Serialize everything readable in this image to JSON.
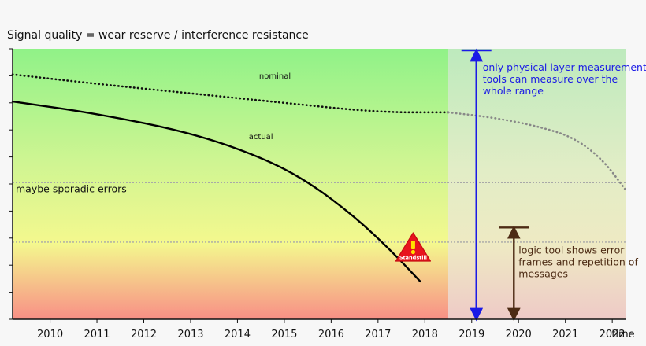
{
  "chart_data": {
    "type": "line",
    "title": "Signal quality = wear reserve / interference resistance",
    "xlabel": "time",
    "ylabel": "",
    "x_ticks": [
      "2010",
      "2011",
      "2012",
      "2013",
      "2014",
      "2015",
      "2016",
      "2017",
      "2018",
      "2019",
      "2020",
      "2021",
      "2022"
    ],
    "xlim": [
      2009.2,
      2022.3
    ],
    "ylim": [
      0,
      1
    ],
    "grid": false,
    "series": [
      {
        "name": "nominal",
        "style": "dotted",
        "color": "#111111",
        "x": [
          2009.2,
          2011,
          2013,
          2015,
          2017,
          2018.5
        ],
        "y": [
          0.905,
          0.87,
          0.835,
          0.8,
          0.765,
          0.765
        ]
      },
      {
        "name": "nominal-projection",
        "style": "dotted",
        "color": "#888888",
        "x": [
          2018.5,
          2019.5,
          2020.5,
          2021.2,
          2021.8,
          2022.3
        ],
        "y": [
          0.765,
          0.745,
          0.71,
          0.67,
          0.59,
          0.475
        ]
      },
      {
        "name": "actual",
        "style": "solid",
        "color": "#000000",
        "x": [
          2009.2,
          2011,
          2013,
          2014.5,
          2015.5,
          2016.5,
          2017.3,
          2017.9
        ],
        "y": [
          0.805,
          0.76,
          0.69,
          0.6,
          0.51,
          0.38,
          0.25,
          0.14
        ]
      }
    ],
    "threshold_lines": [
      {
        "label": "maybe sporadic errors",
        "y": 0.505
      },
      {
        "label": "",
        "y": 0.285
      }
    ],
    "series_labels": [
      {
        "text": "nominal",
        "x": 2014.8,
        "y": 0.89
      },
      {
        "text": "actual",
        "x": 2014.5,
        "y": 0.665
      }
    ],
    "regions": {
      "split_x": 2018.5
    },
    "annotations": [
      {
        "id": "physical",
        "text_lines": [
          "only physical layer measurement",
          "tools can measure over the",
          "whole range"
        ],
        "color": "#1a1ae6",
        "arrow_x": 2019.1,
        "arrow_y": [
          0,
          1
        ]
      },
      {
        "id": "logic",
        "text_lines": [
          "logic tool shows error",
          "frames and repetition of",
          "messages"
        ],
        "color": "#4d2b14",
        "arrow_x": 2019.9,
        "arrow_y": [
          0,
          0.345
        ]
      }
    ],
    "standstill": {
      "label": "Standstill",
      "x": 2017.75,
      "y": 0.25
    }
  }
}
